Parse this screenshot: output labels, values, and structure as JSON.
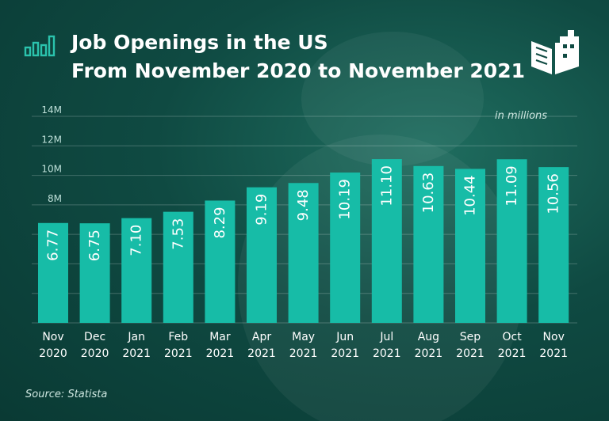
{
  "header": {
    "title_line1": "Job Openings in the US",
    "title_line2": "From November 2020 to November 2021"
  },
  "unit_note": "in millions",
  "source": "Source: Statista",
  "colors": {
    "bar": "#17bca7",
    "accent": "#2bc3ad",
    "background": "#0f4a42"
  },
  "icons": {
    "title": "bar-chart-icon",
    "logo": "book-building-logo-icon"
  },
  "chart_data": {
    "type": "bar",
    "title": "Job Openings in the US From November 2020 to November 2021",
    "xlabel": "",
    "ylabel": "",
    "unit": "in millions",
    "categories": [
      [
        "Nov",
        "2020"
      ],
      [
        "Dec",
        "2020"
      ],
      [
        "Jan",
        "2021"
      ],
      [
        "Feb",
        "2021"
      ],
      [
        "Mar",
        "2021"
      ],
      [
        "Apr",
        "2021"
      ],
      [
        "May",
        "2021"
      ],
      [
        "Jun",
        "2021"
      ],
      [
        "Jul",
        "2021"
      ],
      [
        "Aug",
        "2021"
      ],
      [
        "Sep",
        "2021"
      ],
      [
        "Oct",
        "2021"
      ],
      [
        "Nov",
        "2021"
      ]
    ],
    "values": [
      6.77,
      6.75,
      7.1,
      7.53,
      8.29,
      9.19,
      9.48,
      10.19,
      11.1,
      10.63,
      10.44,
      11.09,
      10.56
    ],
    "value_labels": [
      "6.77",
      "6.75",
      "7.10",
      "7.53",
      "8.29",
      "9.19",
      "9.48",
      "10.19",
      "11.10",
      "10.63",
      "10.44",
      "11.09",
      "10.56"
    ],
    "yticks": [
      0,
      2,
      4,
      6,
      8,
      10,
      12,
      14
    ],
    "ytick_labels": [
      "",
      "",
      "",
      "",
      "8M",
      "10M",
      "12M",
      "14M"
    ],
    "ylim": [
      0,
      14
    ],
    "grid": true,
    "legend": "none"
  }
}
